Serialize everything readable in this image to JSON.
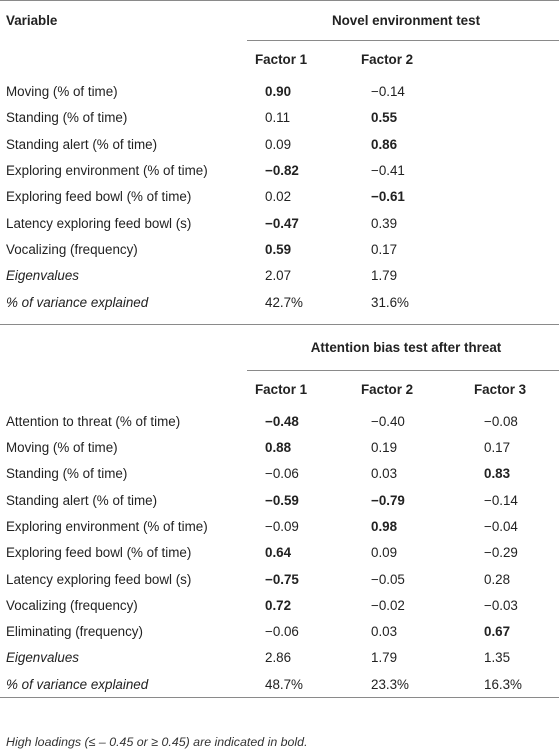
{
  "header": {
    "variable": "Variable",
    "section1_title": "Novel environment test",
    "section2_title": "Attention bias test after threat"
  },
  "section1": {
    "factors": [
      "Factor 1",
      "Factor 2"
    ],
    "rows": [
      {
        "label": "Moving (% of time)",
        "values": [
          "0.90",
          "−0.14"
        ],
        "bold": [
          true,
          false
        ]
      },
      {
        "label": "Standing (% of time)",
        "values": [
          "0.11",
          "0.55"
        ],
        "bold": [
          false,
          true
        ]
      },
      {
        "label": "Standing alert (% of time)",
        "values": [
          "0.09",
          "0.86"
        ],
        "bold": [
          false,
          true
        ]
      },
      {
        "label": "Exploring environment (% of time)",
        "values": [
          "−0.82",
          "−0.41"
        ],
        "bold": [
          true,
          false
        ]
      },
      {
        "label": "Exploring feed bowl (% of time)",
        "values": [
          "0.02",
          "−0.61"
        ],
        "bold": [
          false,
          true
        ]
      },
      {
        "label": "Latency exploring feed bowl (s)",
        "values": [
          "−0.47",
          "0.39"
        ],
        "bold": [
          true,
          false
        ]
      },
      {
        "label": "Vocalizing (frequency)",
        "values": [
          "0.59",
          "0.17"
        ],
        "bold": [
          true,
          false
        ]
      },
      {
        "label": "Eigenvalues",
        "values": [
          "2.07",
          "1.79"
        ],
        "bold": [
          false,
          false
        ],
        "italic": true
      },
      {
        "label": "% of variance explained",
        "values": [
          "42.7%",
          "31.6%"
        ],
        "bold": [
          false,
          false
        ],
        "italic": true
      }
    ]
  },
  "section2": {
    "factors": [
      "Factor 1",
      "Factor 2",
      "Factor 3"
    ],
    "rows": [
      {
        "label": "Attention to threat (% of time)",
        "values": [
          "−0.48",
          "−0.40",
          "−0.08"
        ],
        "bold": [
          true,
          false,
          false
        ]
      },
      {
        "label": "Moving (% of time)",
        "values": [
          "0.88",
          "0.19",
          "0.17"
        ],
        "bold": [
          true,
          false,
          false
        ]
      },
      {
        "label": "Standing (% of time)",
        "values": [
          "−0.06",
          "0.03",
          "0.83"
        ],
        "bold": [
          false,
          false,
          true
        ]
      },
      {
        "label": "Standing alert (% of time)",
        "values": [
          "−0.59",
          "−0.79",
          "−0.14"
        ],
        "bold": [
          true,
          true,
          false
        ]
      },
      {
        "label": "Exploring environment (% of time)",
        "values": [
          "−0.09",
          "0.98",
          "−0.04"
        ],
        "bold": [
          false,
          true,
          false
        ]
      },
      {
        "label": "Exploring feed bowl (% of time)",
        "values": [
          "0.64",
          "0.09",
          "−0.29"
        ],
        "bold": [
          true,
          false,
          false
        ]
      },
      {
        "label": "Latency exploring feed bowl (s)",
        "values": [
          "−0.75",
          "−0.05",
          "0.28"
        ],
        "bold": [
          true,
          false,
          false
        ]
      },
      {
        "label": "Vocalizing (frequency)",
        "values": [
          "0.72",
          "−0.02",
          "−0.03"
        ],
        "bold": [
          true,
          false,
          false
        ]
      },
      {
        "label": "Eliminating (frequency)",
        "values": [
          "−0.06",
          "0.03",
          "0.67"
        ],
        "bold": [
          false,
          false,
          true
        ]
      },
      {
        "label": "Eigenvalues",
        "values": [
          "2.86",
          "1.79",
          "1.35"
        ],
        "bold": [
          false,
          false,
          false
        ],
        "italic": true
      },
      {
        "label": "% of variance explained",
        "values": [
          "48.7%",
          "23.3%",
          "16.3%"
        ],
        "bold": [
          false,
          false,
          false
        ],
        "italic": true
      }
    ]
  },
  "footnote": "High loadings (≤ – 0.45 or ≥ 0.45) are indicated in bold."
}
